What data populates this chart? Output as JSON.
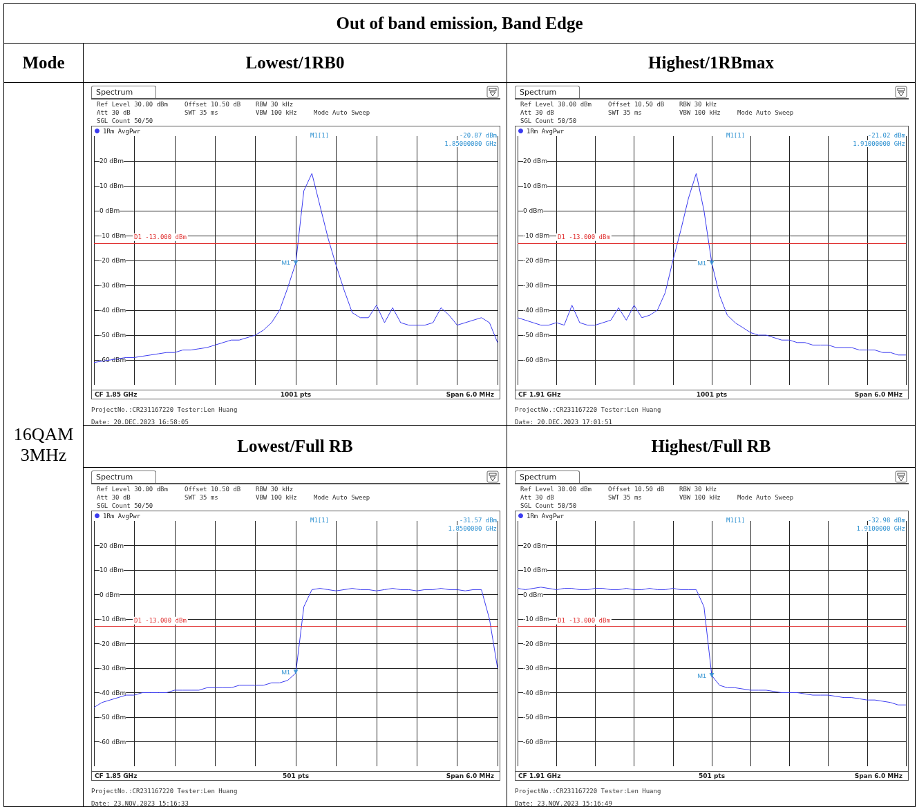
{
  "chart_data": [
    {
      "type": "line",
      "title": "Lowest/1RB0",
      "categories": [
        null,
        null,
        null,
        null,
        null,
        null,
        null,
        null,
        null,
        null,
        null,
        null,
        null,
        null,
        null,
        null,
        null,
        null,
        null,
        null,
        null,
        null,
        null,
        null,
        null,
        null,
        null,
        null,
        null,
        null,
        null,
        null,
        null,
        null,
        null,
        null,
        null,
        null,
        null,
        null,
        null,
        null,
        null,
        null,
        null,
        null,
        null,
        null,
        null,
        null,
        null
      ],
      "series": [
        {
          "type": "scatter",
          "marker": "triangle",
          "color": "#2a8fd0",
          "values": [
            null,
            null,
            null,
            null,
            null,
            null,
            null,
            null,
            null,
            null,
            null,
            null,
            null,
            null,
            null,
            null,
            null,
            null,
            null,
            null,
            null,
            null,
            null,
            null,
            null,
            -20.87,
            null,
            null,
            null,
            null,
            null,
            null,
            null,
            null,
            null,
            null,
            null,
            null,
            null,
            null,
            null,
            null,
            null,
            null,
            null,
            null,
            null,
            null,
            null,
            null,
            null
          ]
        },
        {
          "name": "1Rm AvgPwr",
          "color": "#3b3bf0",
          "values": [
            -61,
            -60.5,
            -60,
            -59.5,
            -59,
            -59,
            -58.5,
            -58,
            -57.5,
            -57,
            -57,
            -56,
            -56,
            -55.5,
            -55,
            -54,
            -53,
            -52,
            -52,
            -51,
            -50,
            -48,
            -45,
            -40,
            -31,
            -21,
            8,
            15,
            2,
            -11,
            -22,
            -32,
            -41,
            -43,
            -43,
            -38,
            -45,
            -39,
            -45,
            -46,
            -46,
            -46,
            -45,
            -39,
            -42,
            -46,
            -45,
            -44,
            -43,
            -45,
            -53
          ]
        }
      ],
      "ylim": [
        -70,
        30
      ],
      "yticks": [
        {
          "value": 20,
          "label": "20 dBm"
        },
        {
          "value": 10,
          "label": "10 dBm"
        },
        {
          "value": 0,
          "label": "0 dBm"
        },
        {
          "value": -10,
          "label": "-10 dBm"
        },
        {
          "value": -20,
          "label": "-20 dBm"
        },
        {
          "value": -30,
          "label": "-30 dBm"
        },
        {
          "value": -40,
          "label": "-40 dBm"
        },
        {
          "value": -50,
          "label": "-50 dBm"
        },
        {
          "value": -60,
          "label": "-60 dBm"
        }
      ],
      "grid": true,
      "legend": "top left",
      "marker": "none",
      "line_style": "solid",
      "ref_lines": [
        {
          "axis": "y",
          "value": -13,
          "label": "D1 -13.000 dBm",
          "color": "#e03030"
        }
      ],
      "annotations": [
        "Spectrum",
        "Ref Level 30.00 dBm",
        "Offset 10.50 dB",
        "RBW 30 kHz",
        "Att 30 dB",
        "SWT 35 ms",
        "VBW 100 kHz",
        "Mode Auto Sweep",
        "SGL Count 50/50",
        "M1[1]",
        "-20.87 dBm",
        "1.85000000 GHz",
        "CF 1.85 GHz",
        "1001 pts",
        "Span 6.0 MHz",
        "ProjectNo.:CR231167220  Tester:Len Huang",
        "Date: 20.DEC.2023  16:58:05",
        {
          "text": "M1",
          "y": -20.87
        },
        "Out of band emission, Band Edge",
        "Mode",
        "16QAM 3MHz"
      ]
    },
    {
      "type": "line",
      "title": "Highest/1RBmax",
      "categories": [
        null,
        null,
        null,
        null,
        null,
        null,
        null,
        null,
        null,
        null,
        null,
        null,
        null,
        null,
        null,
        null,
        null,
        null,
        null,
        null,
        null,
        null,
        null,
        null,
        null,
        null,
        null,
        null,
        null,
        null,
        null,
        null,
        null,
        null,
        null,
        null,
        null,
        null,
        null,
        null,
        null,
        null,
        null,
        null,
        null,
        null,
        null,
        null,
        null,
        null,
        null
      ],
      "series": [
        {
          "type": "scatter",
          "marker": "triangle",
          "color": "#2a8fd0",
          "values": [
            null,
            null,
            null,
            null,
            null,
            null,
            null,
            null,
            null,
            null,
            null,
            null,
            null,
            null,
            null,
            null,
            null,
            null,
            null,
            null,
            null,
            null,
            null,
            null,
            null,
            -21.02,
            null,
            null,
            null,
            null,
            null,
            null,
            null,
            null,
            null,
            null,
            null,
            null,
            null,
            null,
            null,
            null,
            null,
            null,
            null,
            null,
            null,
            null,
            null,
            null,
            null
          ]
        },
        {
          "name": "1Rm AvgPwr",
          "color": "#3b3bf0",
          "values": [
            -43,
            -44,
            -45,
            -46,
            -46,
            -45,
            -46,
            -38,
            -45,
            -46,
            -46,
            -45,
            -44,
            -39,
            -44,
            -38,
            -43,
            -42,
            -40,
            -33,
            -20,
            -8,
            5,
            15,
            0,
            -21,
            -34,
            -42,
            -45,
            -47,
            -49,
            -50,
            -50,
            -51,
            -52,
            -52,
            -53,
            -53,
            -54,
            -54,
            -54,
            -55,
            -55,
            -55,
            -56,
            -56,
            -56,
            -57,
            -57,
            -58,
            -58
          ]
        }
      ],
      "ylim": [
        -70,
        30
      ],
      "yticks": [
        {
          "value": 20,
          "label": "20 dBm"
        },
        {
          "value": 10,
          "label": "10 dBm"
        },
        {
          "value": 0,
          "label": "0 dBm"
        },
        {
          "value": -10,
          "label": "-10 dBm"
        },
        {
          "value": -20,
          "label": "-20 dBm"
        },
        {
          "value": -30,
          "label": "-30 dBm"
        },
        {
          "value": -40,
          "label": "-40 dBm"
        },
        {
          "value": -50,
          "label": "-50 dBm"
        },
        {
          "value": -60,
          "label": "-60 dBm"
        }
      ],
      "grid": true,
      "legend": "top left",
      "marker": "none",
      "line_style": "solid",
      "ref_lines": [
        {
          "axis": "y",
          "value": -13,
          "label": "D1 -13.000 dBm",
          "color": "#e03030"
        }
      ],
      "annotations": [
        "Spectrum",
        "Ref Level 30.00 dBm",
        "Offset 10.50 dB",
        "RBW 30 kHz",
        "Att 30 dB",
        "SWT 35 ms",
        "VBW 100 kHz",
        "Mode Auto Sweep",
        "SGL Count 50/50",
        "M1[1]",
        "-21.02 dBm",
        "1.91000000 GHz",
        "CF 1.91 GHz",
        "1001 pts",
        "Span 6.0 MHz",
        "ProjectNo.:CR231167220  Tester:Len Huang",
        "Date: 20.DEC.2023  17:01:51",
        {
          "text": "M1",
          "y": -21.02
        }
      ]
    },
    {
      "type": "line",
      "title": "Lowest/Full RB",
      "categories": [
        null,
        null,
        null,
        null,
        null,
        null,
        null,
        null,
        null,
        null,
        null,
        null,
        null,
        null,
        null,
        null,
        null,
        null,
        null,
        null,
        null,
        null,
        null,
        null,
        null,
        null,
        null,
        null,
        null,
        null,
        null,
        null,
        null,
        null,
        null,
        null,
        null,
        null,
        null,
        null,
        null,
        null,
        null,
        null,
        null,
        null,
        null,
        null,
        null,
        null,
        null
      ],
      "series": [
        {
          "type": "scatter",
          "marker": "triangle",
          "color": "#2a8fd0",
          "values": [
            null,
            null,
            null,
            null,
            null,
            null,
            null,
            null,
            null,
            null,
            null,
            null,
            null,
            null,
            null,
            null,
            null,
            null,
            null,
            null,
            null,
            null,
            null,
            null,
            null,
            -31.57,
            null,
            null,
            null,
            null,
            null,
            null,
            null,
            null,
            null,
            null,
            null,
            null,
            null,
            null,
            null,
            null,
            null,
            null,
            null,
            null,
            null,
            null,
            null,
            null,
            null
          ]
        },
        {
          "name": "1Rm AvgPwr",
          "color": "#3b3bf0",
          "values": [
            -46,
            -44,
            -43,
            -42,
            -41,
            -41,
            -40,
            -40,
            -40,
            -40,
            -39,
            -39,
            -39,
            -39,
            -38,
            -38,
            -38,
            -38,
            -37,
            -37,
            -37,
            -37,
            -36,
            -36,
            -35,
            -32,
            -5,
            2,
            2.5,
            2,
            1.5,
            2,
            2.5,
            2,
            2,
            1.5,
            2,
            2.5,
            2,
            2,
            1.5,
            2,
            2,
            2.5,
            2,
            2,
            1.5,
            2,
            2,
            -10,
            -30
          ]
        }
      ],
      "ylim": [
        -70,
        30
      ],
      "yticks": [
        {
          "value": 20,
          "label": "20 dBm"
        },
        {
          "value": 10,
          "label": "10 dBm"
        },
        {
          "value": 0,
          "label": "0 dBm"
        },
        {
          "value": -10,
          "label": "-10 dBm"
        },
        {
          "value": -20,
          "label": "-20 dBm"
        },
        {
          "value": -30,
          "label": "-30 dBm"
        },
        {
          "value": -40,
          "label": "-40 dBm"
        },
        {
          "value": -50,
          "label": "-50 dBm"
        },
        {
          "value": -60,
          "label": "-60 dBm"
        }
      ],
      "grid": true,
      "legend": "top left",
      "marker": "none",
      "line_style": "solid",
      "ref_lines": [
        {
          "axis": "y",
          "value": -13,
          "label": "D1 -13.000 dBm",
          "color": "#e03030"
        }
      ],
      "annotations": [
        "Spectrum",
        "Ref Level 30.00 dBm",
        "Offset 10.50 dB",
        "RBW 30 kHz",
        "Att 30 dB",
        "SWT 35 ms",
        "VBW 100 kHz",
        "Mode Auto Sweep",
        "SGL Count 50/50",
        "M1[1]",
        "-31.57 dBm",
        "1.8500000 GHz",
        "CF 1.85 GHz",
        "501 pts",
        "Span 6.0 MHz",
        "ProjectNo.:CR231167220  Tester:Len Huang",
        "Date: 23.NOV.2023  15:16:33",
        {
          "text": "M1",
          "y": -31.57
        }
      ]
    },
    {
      "type": "line",
      "title": "Highest/Full RB",
      "categories": [
        null,
        null,
        null,
        null,
        null,
        null,
        null,
        null,
        null,
        null,
        null,
        null,
        null,
        null,
        null,
        null,
        null,
        null,
        null,
        null,
        null,
        null,
        null,
        null,
        null,
        null,
        null,
        null,
        null,
        null,
        null,
        null,
        null,
        null,
        null,
        null,
        null,
        null,
        null,
        null,
        null,
        null,
        null,
        null,
        null,
        null,
        null,
        null,
        null,
        null,
        null
      ],
      "series": [
        {
          "type": "scatter",
          "marker": "triangle",
          "color": "#2a8fd0",
          "values": [
            null,
            null,
            null,
            null,
            null,
            null,
            null,
            null,
            null,
            null,
            null,
            null,
            null,
            null,
            null,
            null,
            null,
            null,
            null,
            null,
            null,
            null,
            null,
            null,
            null,
            -32.98,
            null,
            null,
            null,
            null,
            null,
            null,
            null,
            null,
            null,
            null,
            null,
            null,
            null,
            null,
            null,
            null,
            null,
            null,
            null,
            null,
            null,
            null,
            null,
            null,
            null
          ]
        },
        {
          "name": "1Rm AvgPwr",
          "color": "#3b3bf0",
          "values": [
            2.5,
            2,
            2.5,
            3,
            2.5,
            2,
            2.5,
            2.5,
            2,
            2,
            2.5,
            2.5,
            2,
            2,
            2.5,
            2,
            2,
            2.5,
            2,
            2,
            2.5,
            2,
            2,
            2,
            -5,
            -33,
            -37,
            -38,
            -38,
            -38.5,
            -39,
            -39,
            -39,
            -39.5,
            -40,
            -40,
            -40,
            -40.5,
            -41,
            -41,
            -41,
            -41.5,
            -42,
            -42,
            -42.5,
            -43,
            -43,
            -43.5,
            -44,
            -45,
            -45
          ]
        }
      ],
      "ylim": [
        -70,
        30
      ],
      "yticks": [
        {
          "value": 20,
          "label": "20 dBm"
        },
        {
          "value": 10,
          "label": "10 dBm"
        },
        {
          "value": 0,
          "label": "0 dBm"
        },
        {
          "value": -10,
          "label": "-10 dBm"
        },
        {
          "value": -20,
          "label": "-20 dBm"
        },
        {
          "value": -30,
          "label": "-30 dBm"
        },
        {
          "value": -40,
          "label": "-40 dBm"
        },
        {
          "value": -50,
          "label": "-50 dBm"
        },
        {
          "value": -60,
          "label": "-60 dBm"
        }
      ],
      "grid": true,
      "legend": "top left",
      "marker": "none",
      "line_style": "solid",
      "ref_lines": [
        {
          "axis": "y",
          "value": -13,
          "label": "D1 -13.000 dBm",
          "color": "#e03030"
        }
      ],
      "annotations": [
        "Spectrum",
        "Ref Level 30.00 dBm",
        "Offset 10.50 dB",
        "RBW 30 kHz",
        "Att 30 dB",
        "SWT 35 ms",
        "VBW 100 kHz",
        "Mode Auto Sweep",
        "SGL Count 50/50",
        "M1[1]",
        "-32.98 dBm",
        "1.9100000 GHz",
        "CF 1.91 GHz",
        "501 pts",
        "Span 6.0 MHz",
        "ProjectNo.:CR231167220  Tester:Len Huang",
        "Date: 23.NOV.2023  15:16:49",
        {
          "text": "M1",
          "y": -32.98
        }
      ]
    }
  ]
}
